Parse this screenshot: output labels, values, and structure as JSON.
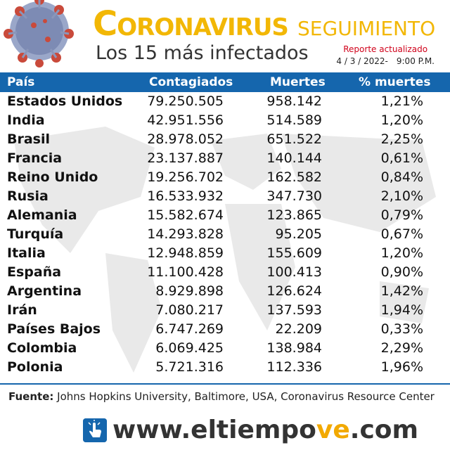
{
  "header": {
    "title_first_letter": "C",
    "title_rest": "ORONAVIRUS",
    "title_secondary": "SEGUIMIENTO",
    "subtitle": "Los 15 más infectados",
    "report_label": "Reporte actualizado",
    "report_date": "4 / 3 / 2022-",
    "report_time": "9:00 P.M."
  },
  "table": {
    "columns": [
      "País",
      "Contagiados",
      "Muertes",
      "% muertes"
    ],
    "rows": [
      [
        "Estados Unidos",
        "79.250.505",
        "958.142",
        "1,21%"
      ],
      [
        "India",
        "42.951.556",
        "514.589",
        "1,20%"
      ],
      [
        "Brasil",
        "28.978.052",
        "651.522",
        "2,25%"
      ],
      [
        "Francia",
        "23.137.887",
        "140.144",
        "0,61%"
      ],
      [
        "Reino Unido",
        "19.256.702",
        "162.582",
        "0,84%"
      ],
      [
        "Rusia",
        "16.533.932",
        "347.730",
        "2,10%"
      ],
      [
        "Alemania",
        "15.582.674",
        "123.865",
        "0,79%"
      ],
      [
        "Turquía",
        "14.293.828",
        "95.205",
        "0,67%"
      ],
      [
        "Italia",
        "12.948.859",
        "155.609",
        "1,20%"
      ],
      [
        "España",
        "11.100.428",
        "100.413",
        "0,90%"
      ],
      [
        "Argentina",
        "8.929.898",
        "126.624",
        "1,42%"
      ],
      [
        "Irán",
        "7.080.217",
        "137.593",
        "1,94%"
      ],
      [
        "Países Bajos",
        "6.747.269",
        "22.209",
        "0,33%"
      ],
      [
        "Colombia",
        "6.069.425",
        "138.984",
        "2,29%"
      ],
      [
        "Polonia",
        "5.721.316",
        "112.336",
        "1,96%"
      ]
    ]
  },
  "source": {
    "label": "Fuente:",
    "text": "Johns Hopkins University, Baltimore, USA, Coronavirus Resource Center"
  },
  "footer": {
    "url_prefix": "www.",
    "url_brand_a": "eltiempo",
    "url_brand_b": "ve",
    "url_suffix": ".com"
  },
  "colors": {
    "accent_yellow": "#f2b705",
    "header_blue": "#1566ad",
    "report_red": "#d0021b"
  },
  "icons": [
    "virus-icon",
    "click-hand-icon",
    "world-map-watermark"
  ]
}
